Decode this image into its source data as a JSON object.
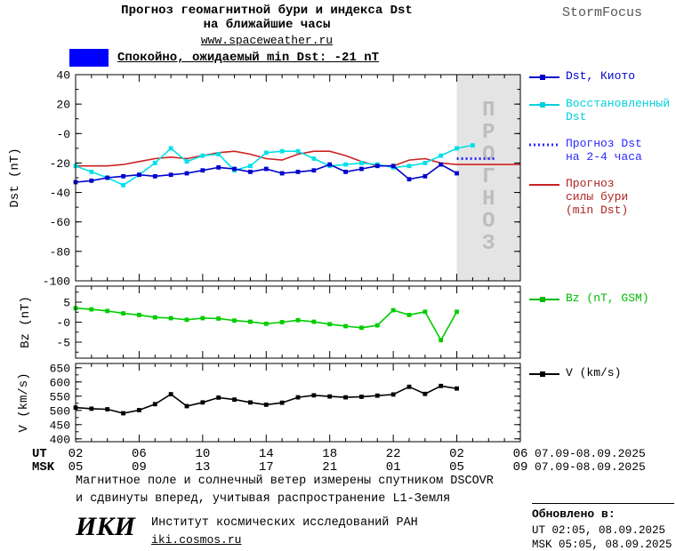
{
  "header": {
    "title_line1": "Прогноз геомагнитной бури и индекса Dst",
    "title_line2": "на ближайшие часы",
    "site_link": "www.spaceweather.ru",
    "brand": "StormFocus"
  },
  "status": {
    "label": "Спокойно, ожидаемый min Dst: -21 nT",
    "swatch_color": "#0000ff"
  },
  "chart_data": {
    "type": "line",
    "title": "Прогноз геомагнитной бури и индекса Dst на ближайшие часы",
    "x_range": [
      2,
      30
    ],
    "x_major_hours": [
      2,
      6,
      10,
      14,
      18,
      22,
      26,
      30
    ],
    "x_ticks_ut": [
      "02",
      "06",
      "10",
      "14",
      "18",
      "22",
      "02",
      "06"
    ],
    "x_ticks_msk": [
      "05",
      "09",
      "13",
      "17",
      "21",
      "01",
      "05",
      "09"
    ],
    "x_axis_ut_label": "UT",
    "x_axis_msk_label": "MSK",
    "x_dates_ut": "07.09-08.09.2025",
    "x_dates_msk": "07.09-08.09.2025",
    "forecast_region": {
      "start": 26,
      "end": 30,
      "label": "ПРОГНОЗ",
      "fill": "#e4e4e4",
      "text_color": "#bdbdbd"
    },
    "panels": [
      {
        "ylabel": "Dst (nT)",
        "ylim": [
          -100,
          40
        ],
        "yticks": [
          [
            40,
            "40"
          ],
          [
            20,
            "20"
          ],
          [
            0,
            "-0"
          ],
          [
            -20,
            "-20"
          ],
          [
            -40,
            "-40"
          ],
          [
            -60,
            "-60"
          ],
          [
            -80,
            "-80"
          ],
          [
            -100,
            "-100"
          ]
        ],
        "series": [
          {
            "id": "storm_force_forecast",
            "name": "Прогноз силы бури (min Dst)",
            "color": "#cd2020",
            "width": 1.6,
            "x": [
              2,
              3,
              4,
              5,
              6,
              7,
              8,
              9,
              10,
              11,
              12,
              13,
              14,
              15,
              16,
              17,
              18,
              19,
              20,
              21,
              22,
              23,
              24,
              25,
              26,
              27,
              28,
              29,
              30
            ],
            "values": [
              -22,
              -22,
              -22,
              -21,
              -19,
              -17,
              -16,
              -17,
              -15,
              -13,
              -12,
              -14,
              -17,
              -18,
              -14,
              -12,
              -12,
              -15,
              -19,
              -22,
              -22,
              -18,
              -17,
              -20,
              -21,
              -21,
              -21,
              -21,
              -21
            ]
          },
          {
            "id": "dst_recovered",
            "name": "Восстановленный Dst",
            "color": "#00e0e8",
            "marker": "square",
            "width": 1.6,
            "x": [
              2,
              3,
              4,
              5,
              6,
              7,
              8,
              9,
              10,
              11,
              12,
              13,
              14,
              15,
              16,
              17,
              18,
              19,
              20,
              21,
              22,
              23,
              24,
              25,
              26,
              27
            ],
            "values": [
              -22,
              -26,
              -30,
              -35,
              -28,
              -20,
              -10,
              -19,
              -15,
              -14,
              -25,
              -22,
              -13,
              -12,
              -12,
              -17,
              -22,
              -21,
              -20,
              -21,
              -23,
              -22,
              -20,
              -15,
              -10,
              -8
            ]
          },
          {
            "id": "dst_kyoto",
            "name": "Dst, Киото",
            "color": "#0000cd",
            "marker": "square",
            "width": 1.6,
            "x": [
              2,
              3,
              4,
              5,
              6,
              7,
              8,
              9,
              10,
              11,
              12,
              13,
              14,
              15,
              16,
              17,
              18,
              19,
              20,
              21,
              22,
              23,
              24,
              25,
              26
            ],
            "values": [
              -33,
              -32,
              -30,
              -29,
              -28,
              -29,
              -28,
              -27,
              -25,
              -23,
              -24,
              -26,
              -24,
              -27,
              -26,
              -25,
              -21,
              -26,
              -24,
              -22,
              -22,
              -31,
              -29,
              -21,
              -27
            ]
          },
          {
            "id": "dst_forecast_2_4h",
            "name": "Прогноз Dst на 2-4 часа",
            "color": "#2a2aff",
            "style": "dotted",
            "x": [
              26,
              28.5
            ],
            "values": [
              -17,
              -17
            ]
          }
        ]
      },
      {
        "ylabel": "Bz (nT)",
        "ylim": [
          -9,
          9
        ],
        "yticks": [
          [
            5,
            "5"
          ],
          [
            0,
            "-0"
          ],
          [
            -5,
            "-5"
          ]
        ],
        "series": [
          {
            "id": "bz",
            "name": "Bz (nT, GSM)",
            "color": "#00cc00",
            "marker": "square",
            "width": 1.6,
            "x": [
              2,
              3,
              4,
              5,
              6,
              7,
              8,
              9,
              10,
              11,
              12,
              13,
              14,
              15,
              16,
              17,
              18,
              19,
              20,
              21,
              22,
              23,
              24,
              25,
              26
            ],
            "values": [
              3.5,
              3.2,
              2.8,
              2.2,
              1.8,
              1.2,
              1.0,
              0.6,
              1.0,
              0.9,
              0.4,
              0.1,
              -0.4,
              0.0,
              0.5,
              0.1,
              -0.5,
              -1.0,
              -1.4,
              -0.8,
              3.0,
              1.8,
              2.6,
              -4.5,
              2.6
            ]
          }
        ]
      },
      {
        "ylabel": "V (km/s)",
        "ylim": [
          390,
          665
        ],
        "yticks": [
          [
            650,
            "650"
          ],
          [
            600,
            "600"
          ],
          [
            550,
            "550"
          ],
          [
            500,
            "500"
          ],
          [
            450,
            "450"
          ],
          [
            400,
            "400"
          ]
        ],
        "series": [
          {
            "id": "v_wind",
            "name": "V (km/s)",
            "color": "#000000",
            "marker": "square",
            "width": 1.6,
            "x": [
              2,
              3,
              4,
              5,
              6,
              7,
              8,
              9,
              10,
              11,
              12,
              13,
              14,
              15,
              16,
              17,
              18,
              19,
              20,
              21,
              22,
              23,
              24,
              25,
              26
            ],
            "values": [
              510,
              506,
              504,
              490,
              501,
              522,
              557,
              515,
              528,
              545,
              538,
              528,
              520,
              527,
              546,
              553,
              549,
              546,
              548,
              552,
              556,
              583,
              558,
              586,
              577
            ]
          }
        ]
      }
    ]
  },
  "legend_main": [
    {
      "id": "dst-kyoto",
      "label_lines": [
        "Dst, Киото"
      ],
      "color": "#0000cd",
      "swatch": "line-square"
    },
    {
      "id": "dst-recovered",
      "label_lines": [
        "Восстановленный",
        "Dst"
      ],
      "color": "#00d0dd",
      "swatch": "line-square"
    },
    {
      "id": "dst-forecast",
      "label_lines": [
        "Прогноз Dst",
        "на 2-4 часа"
      ],
      "color": "#2a2aff",
      "swatch": "dotted"
    },
    {
      "id": "storm-force",
      "label_lines": [
        "Прогноз",
        "силы бури",
        "(min Dst)"
      ],
      "color": "#cd2020",
      "text_color": "#b22222",
      "swatch": "line"
    }
  ],
  "legend_bz": {
    "id": "bz",
    "label_lines": [
      "Bz (nT, GSM)"
    ],
    "color": "#00bb00",
    "swatch": "line-square"
  },
  "legend_v": {
    "id": "v",
    "label_lines": [
      "V (km/s)"
    ],
    "color": "#000000",
    "swatch": "line-square"
  },
  "footer": {
    "note_line1": "Магнитное поле и солнечный ветер измерены спутником DSCOVR",
    "note_line2": "и сдвинуты вперед, учитывая распространение L1-Земля",
    "iki_logo": "ИКИ",
    "iki_name": "Институт космических исследований РАН",
    "iki_site": "iki.cosmos.ru",
    "updated_heading": "Обновлено в:",
    "updated_ut": "UT  02:05, 08.09.2025",
    "updated_msk": "MSK 05:05, 08.09.2025"
  }
}
